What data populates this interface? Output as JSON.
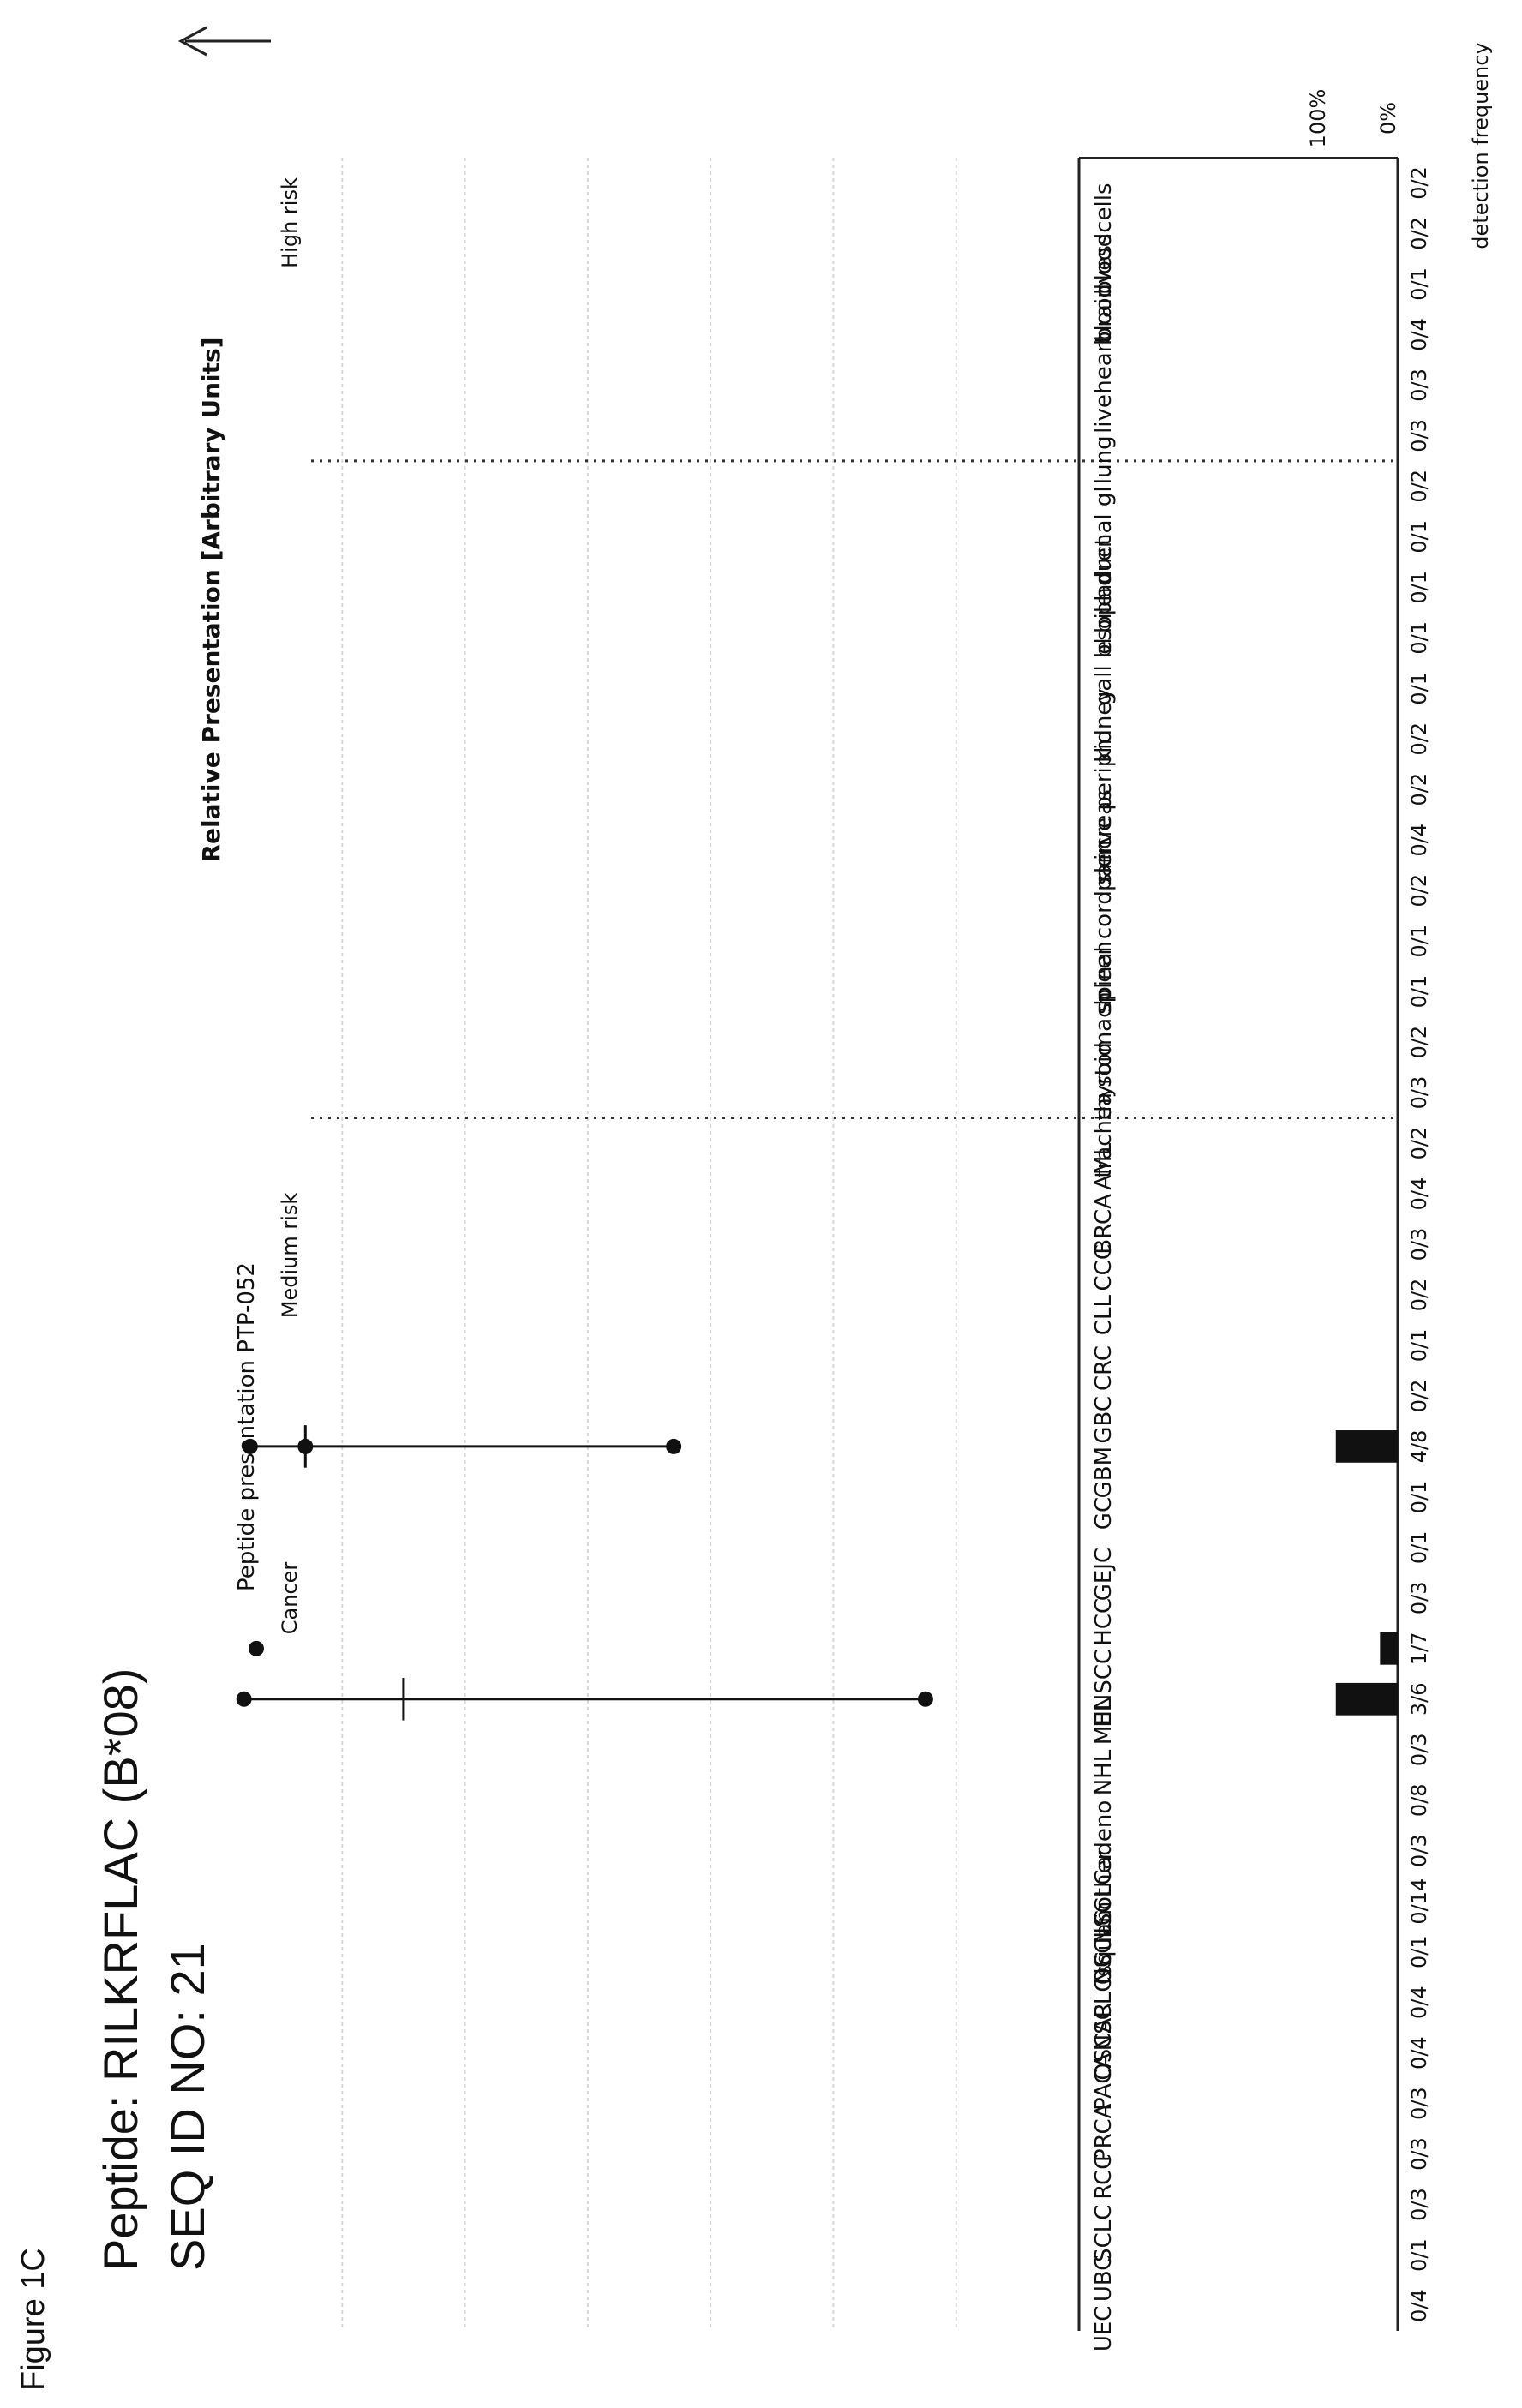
{
  "figure_label": "Figure 1C",
  "peptide_line": "Peptide: RILKRFLAC (B*08)",
  "seq_line": "SEQ ID NO: 21",
  "chart_data": {
    "type": "box",
    "title": "Peptide presentation PTP-052",
    "ylabel": "Relative Presentation [Arbitrary Units]",
    "ylim": [
      0,
      1.4
    ],
    "grid": true,
    "group_labels": [
      "High risk",
      "Medium risk",
      "Cancer"
    ],
    "categories": [
      "bloodcells",
      "bloodvess",
      "brain",
      "heart",
      "liver",
      "lung",
      "adrenal gl",
      "bile duct",
      "esoph",
      "gall bl",
      "kidney",
      "nerve periph",
      "pancreas",
      "skin",
      "spinal cord",
      "spleen",
      "stomach",
      "thyroid",
      "trachea",
      "AML",
      "BRCA",
      "CCC",
      "CLL",
      "CRC",
      "GBC",
      "GBM",
      "GC",
      "GEJC",
      "HCC",
      "HNSCC",
      "MEL",
      "NHL",
      "NSCLCadeno",
      "NSCLCother",
      "NSCLCsquam",
      "OC",
      "OSCAR",
      "PACA",
      "PRCA",
      "RCC",
      "SCLC",
      "UBC",
      "UEC"
    ],
    "groups": [
      6,
      13,
      24
    ],
    "detection_labels": [
      "0/2",
      "0/2",
      "0/1",
      "0/4",
      "0/3",
      "0/3",
      "0/2",
      "0/1",
      "0/1",
      "0/1",
      "0/1",
      "0/2",
      "0/2",
      "0/4",
      "0/2",
      "0/1",
      "0/1",
      "0/2",
      "0/3",
      "0/2",
      "0/4",
      "0/3",
      "0/2",
      "0/1",
      "0/2",
      "4/8",
      "0/1",
      "0/1",
      "0/3",
      "1/7",
      "3/6",
      "0/3",
      "0/8",
      "0/3",
      "0/14",
      "0/1",
      "0/4",
      "0/4",
      "0/3",
      "0/3",
      "0/3",
      "0/1",
      "0/4"
    ],
    "detection_frequency": [
      0,
      0,
      0,
      0,
      0,
      0,
      0,
      0,
      0,
      0,
      0,
      0,
      0,
      0,
      0,
      0,
      0,
      0,
      0,
      0,
      0,
      0,
      0,
      0,
      0,
      0.5,
      0,
      0,
      0,
      0.143,
      0.5,
      0,
      0,
      0,
      0,
      0,
      0,
      0,
      0,
      0,
      0,
      0,
      0
    ],
    "detection_axis": {
      "top_label": "100%",
      "bottom_label": "0%",
      "title": "detection frequency"
    },
    "boxes": [
      {
        "category": "GBM",
        "min": 0.05,
        "q1": 0.08,
        "median": 0.14,
        "q3": 0.28,
        "max": 0.74,
        "points": [
          0.05,
          0.14,
          0.74
        ]
      },
      {
        "category": "HNSCC",
        "points": [
          0.06
        ]
      },
      {
        "category": "MEL",
        "min": 0.04,
        "median": 0.3,
        "max": 1.15,
        "points": [
          0.04,
          1.15
        ]
      }
    ]
  }
}
